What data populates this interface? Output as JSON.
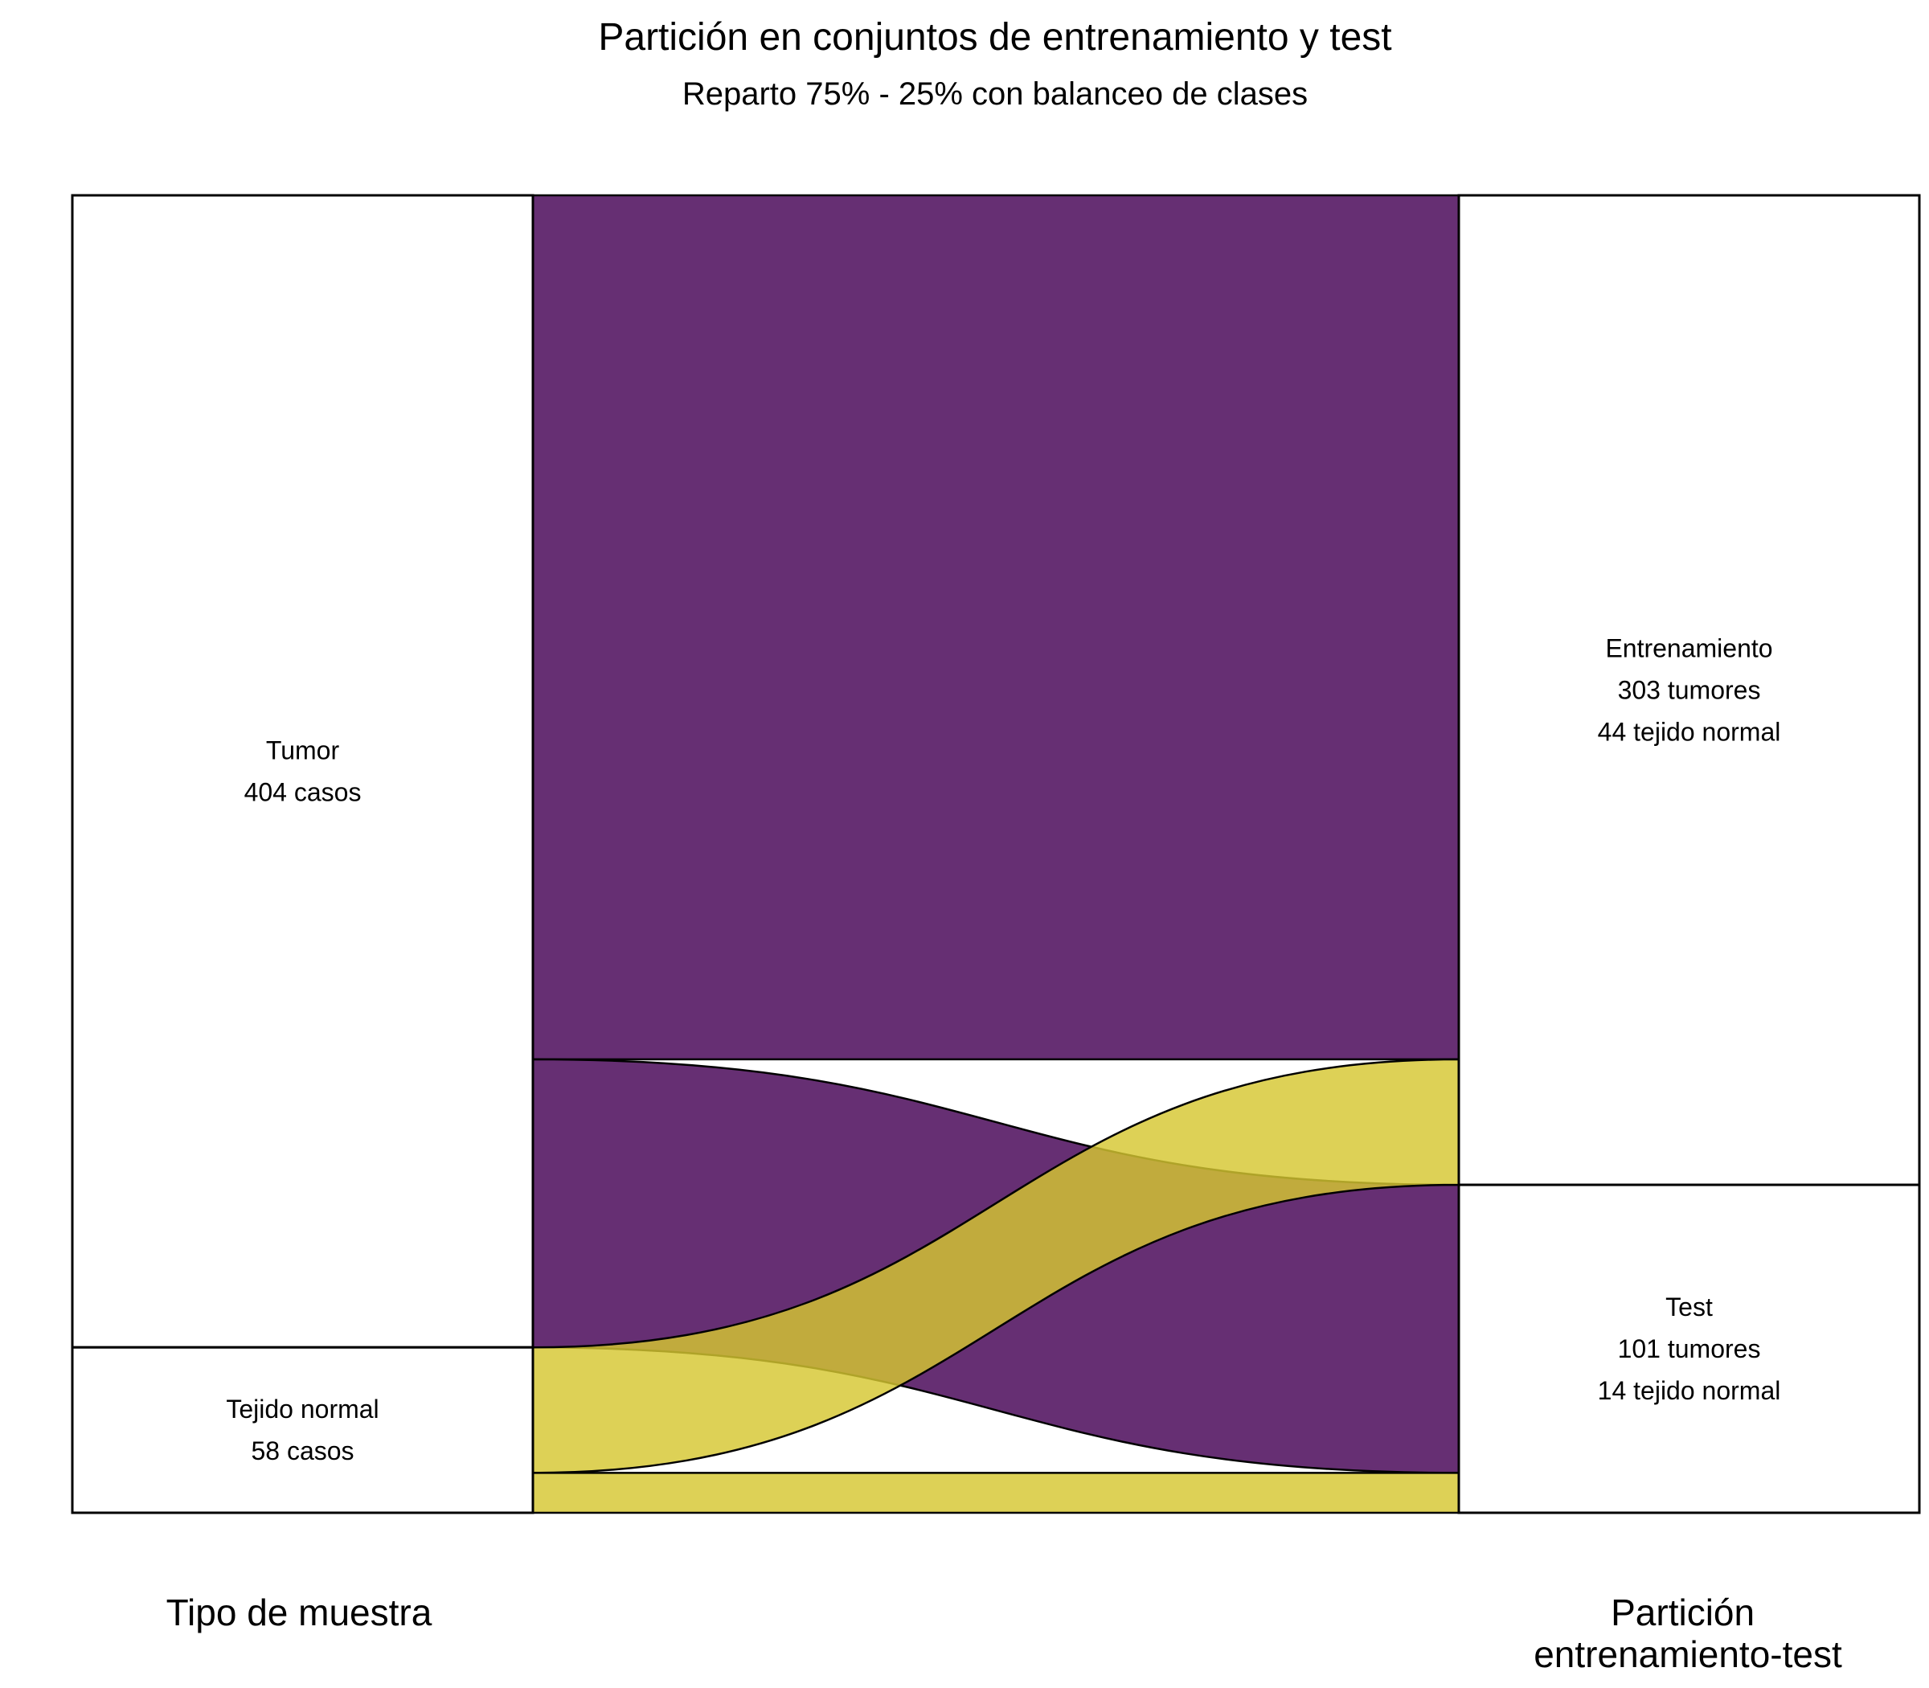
{
  "chart_data": {
    "type": "alluvial",
    "title": "Partición en conjuntos de entrenamiento y test",
    "subtitle": "Reparto 75% - 25% con balanceo de clases",
    "axes": [
      {
        "label": "Tipo de muestra",
        "nodes": [
          {
            "id": "tumor",
            "lines": [
              "Tumor",
              "404 casos"
            ],
            "value": 404
          },
          {
            "id": "normal",
            "lines": [
              "Tejido normal",
              "58 casos"
            ],
            "value": 58
          }
        ]
      },
      {
        "label_lines": [
          "Partición",
          "entrenamiento-test"
        ],
        "nodes": [
          {
            "id": "train",
            "lines": [
              "Entrenamiento",
              "303 tumores",
              "44 tejido normal"
            ],
            "value": 347
          },
          {
            "id": "test",
            "lines": [
              "Test",
              "101 tumores",
              "14 tejido normal"
            ],
            "value": 115
          }
        ]
      }
    ],
    "flows": [
      {
        "from": "tumor",
        "to": "train",
        "value": 303,
        "group": "tumor"
      },
      {
        "from": "tumor",
        "to": "test",
        "value": 101,
        "group": "tumor"
      },
      {
        "from": "normal",
        "to": "train",
        "value": 44,
        "group": "normal"
      },
      {
        "from": "normal",
        "to": "test",
        "value": 14,
        "group": "normal"
      }
    ],
    "colors": {
      "tumor": "#440154",
      "normal": "#d6c731"
    },
    "total": 462
  }
}
